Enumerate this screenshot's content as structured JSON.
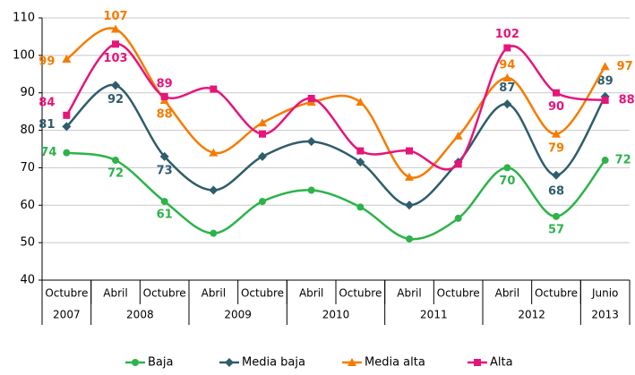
{
  "chart_data": {
    "type": "line",
    "categories": [
      "Octubre",
      "Abril",
      "Octubre",
      "Abril",
      "Octubre",
      "Abril",
      "Octubre",
      "Abril",
      "Octubre",
      "Abril",
      "Octubre",
      "Junio"
    ],
    "category_groups": [
      {
        "label": "2007",
        "size": 1
      },
      {
        "label": "2008",
        "size": 2
      },
      {
        "label": "2009",
        "size": 2
      },
      {
        "label": "2010",
        "size": 2
      },
      {
        "label": "2011",
        "size": 2
      },
      {
        "label": "2012",
        "size": 2
      },
      {
        "label": "2013",
        "size": 1
      }
    ],
    "ylim": [
      40,
      110
    ],
    "yticks": [
      40,
      50,
      60,
      70,
      80,
      90,
      100,
      110
    ],
    "grid": true,
    "smooth": true,
    "legend": "bottom",
    "series": [
      {
        "name": "Baja",
        "color": "#2db34a",
        "marker": "circle",
        "values": [
          74,
          72,
          61,
          52.5,
          61,
          64,
          59.5,
          51,
          56.5,
          70,
          57,
          72
        ],
        "value_labels": [
          "74",
          "72",
          "61",
          null,
          null,
          null,
          null,
          null,
          null,
          "70",
          "57",
          "72"
        ]
      },
      {
        "name": "Media baja",
        "color": "#2f5d6b",
        "marker": "diamond",
        "values": [
          81,
          92,
          73,
          64,
          73,
          77,
          71.5,
          60,
          71.5,
          87,
          68,
          89
        ],
        "value_labels": [
          "81",
          "92",
          "73",
          null,
          null,
          null,
          null,
          null,
          null,
          "87",
          "68",
          "89"
        ]
      },
      {
        "name": "Media alta",
        "color": "#f57c00",
        "marker": "triangle",
        "values": [
          99,
          107,
          88,
          74,
          82,
          87.5,
          87.5,
          67.5,
          78.5,
          94,
          79,
          97
        ],
        "value_labels": [
          "99",
          "107",
          "88",
          null,
          null,
          null,
          null,
          null,
          null,
          "94",
          "79",
          "97"
        ]
      },
      {
        "name": "Alta",
        "color": "#e6157a",
        "marker": "square",
        "values": [
          84,
          103,
          89,
          91,
          79,
          88.5,
          74.5,
          74.5,
          71,
          102,
          90,
          88
        ],
        "value_labels": [
          "84",
          "103",
          "89",
          null,
          null,
          null,
          null,
          null,
          null,
          "102",
          "90",
          "88"
        ]
      }
    ]
  }
}
